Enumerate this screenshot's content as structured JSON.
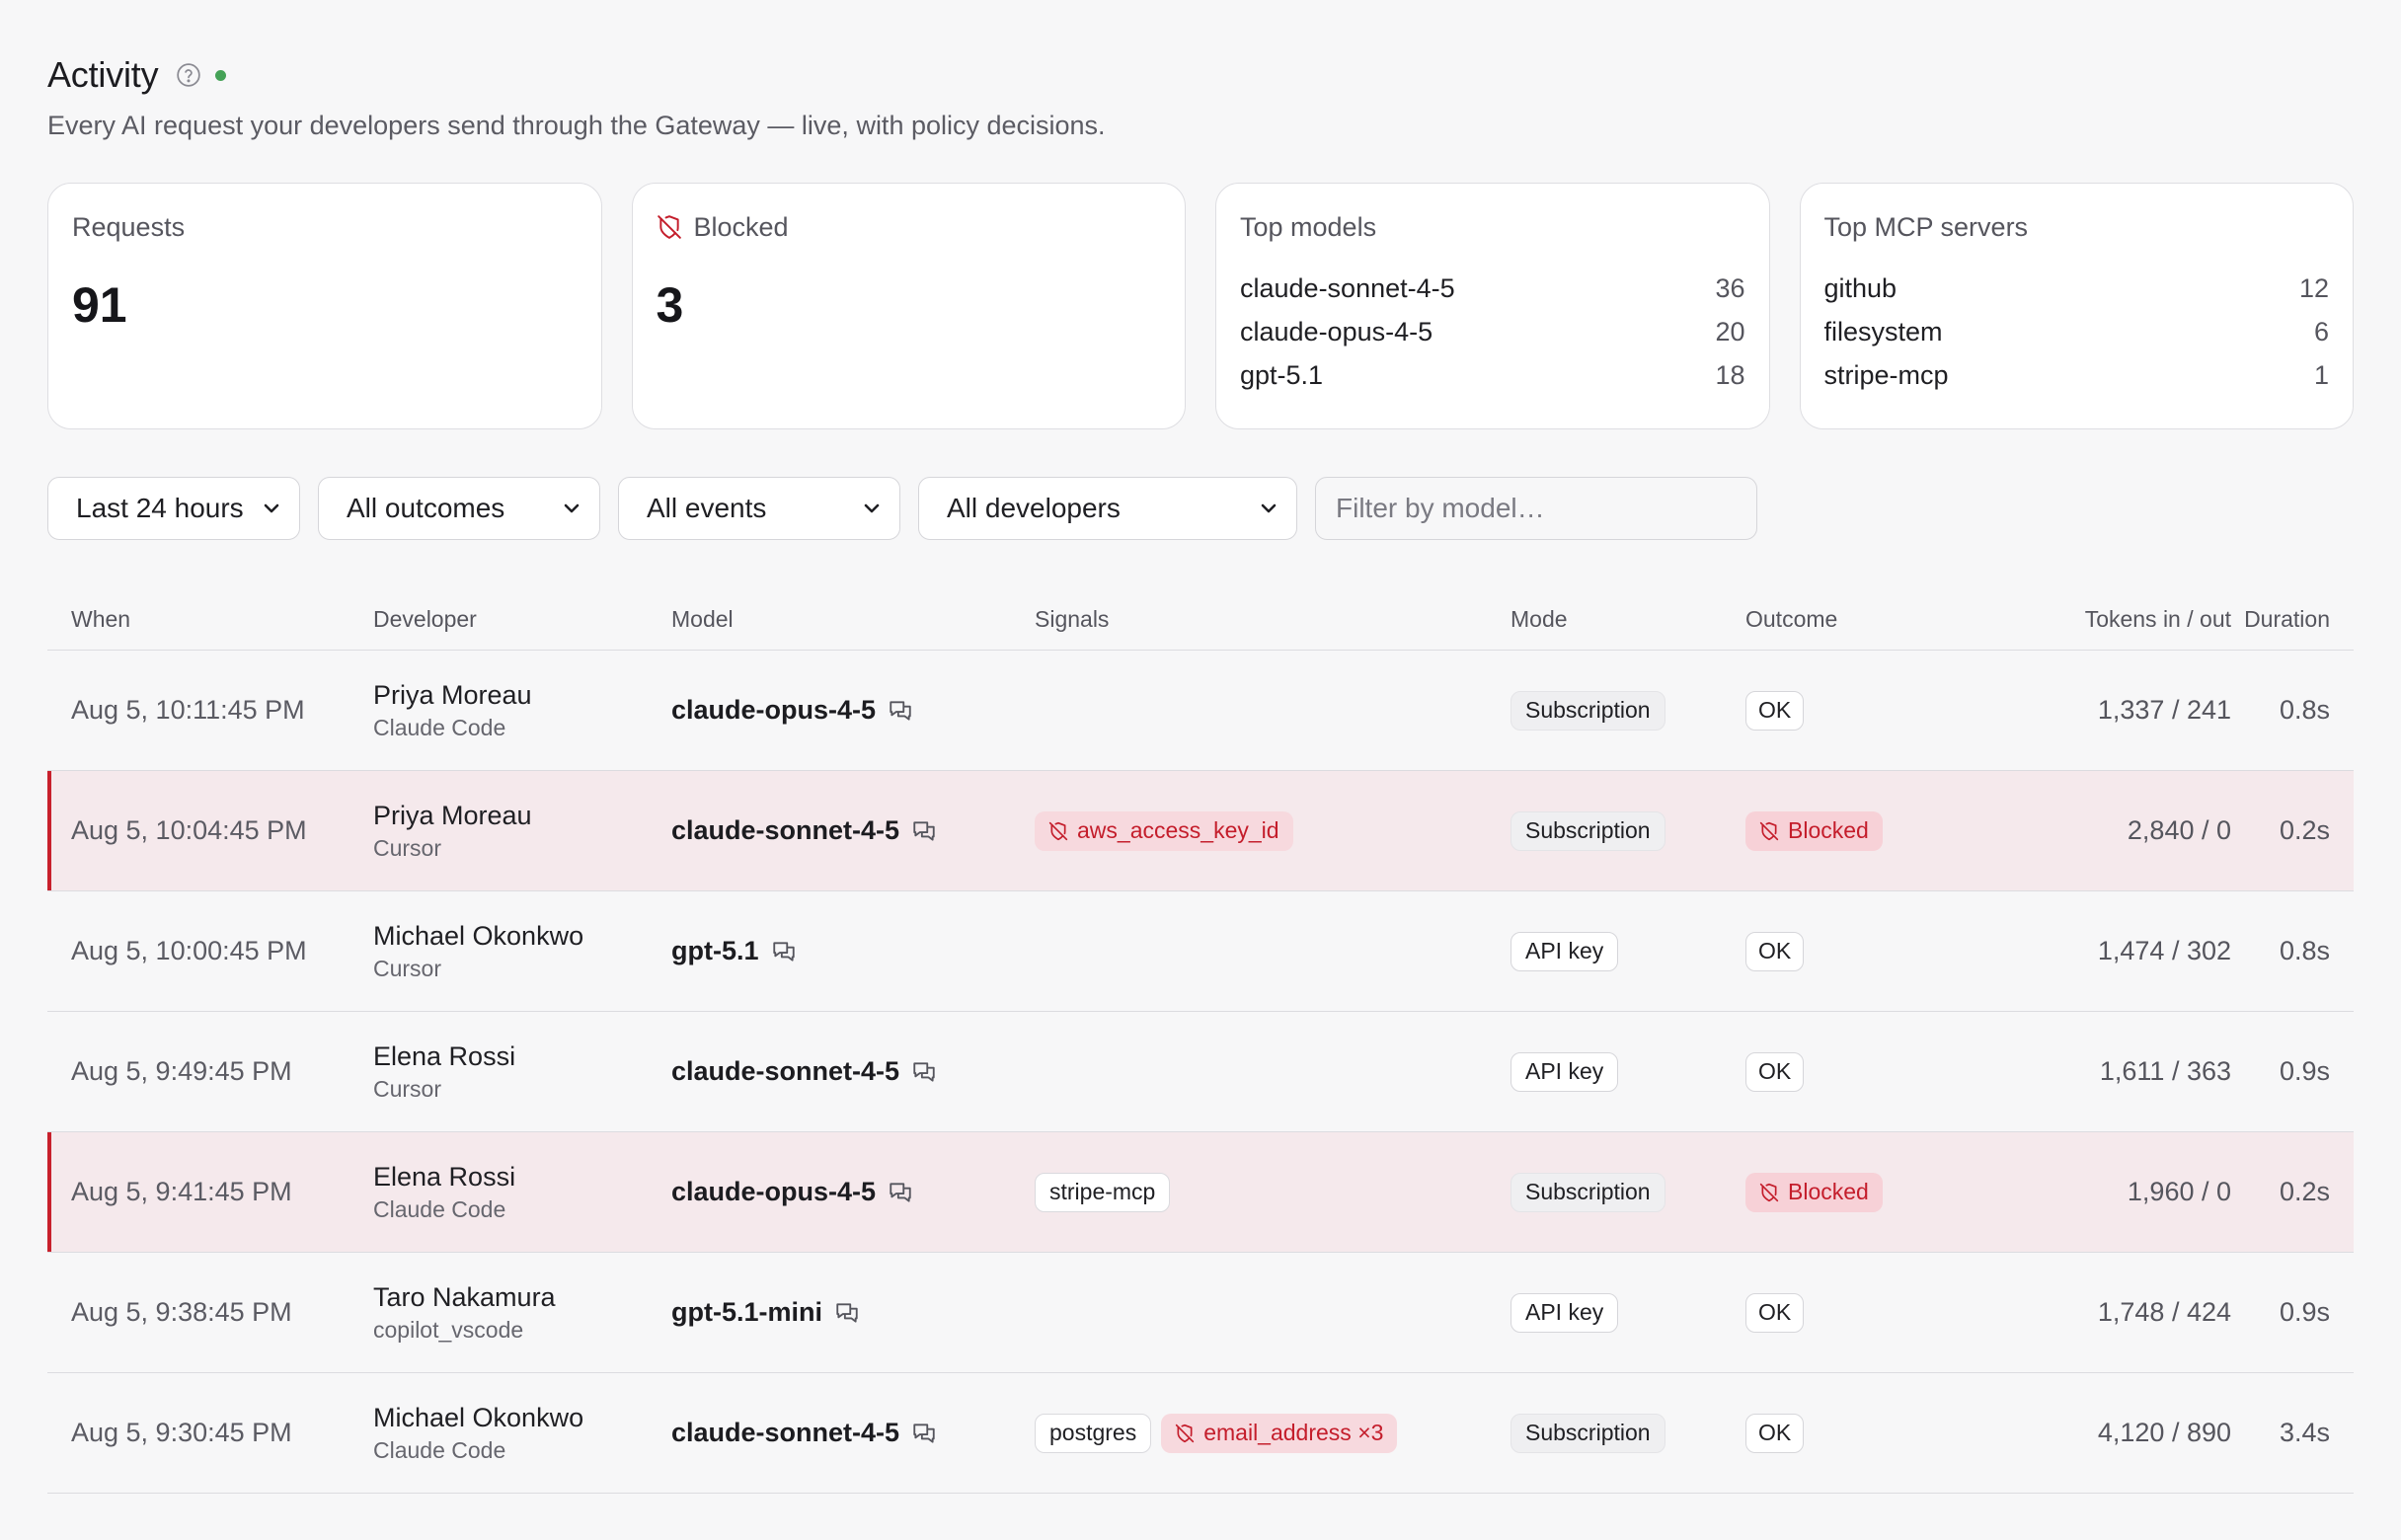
{
  "header": {
    "title": "Activity",
    "subtitle": "Every AI request your developers send through the Gateway — live, with policy decisions."
  },
  "cards": {
    "requests": {
      "label": "Requests",
      "value": "91"
    },
    "blocked": {
      "label": "Blocked",
      "value": "3"
    },
    "top_models": {
      "label": "Top models",
      "items": [
        {
          "name": "claude-sonnet-4-5",
          "count": "36"
        },
        {
          "name": "claude-opus-4-5",
          "count": "20"
        },
        {
          "name": "gpt-5.1",
          "count": "18"
        }
      ]
    },
    "top_mcp": {
      "label": "Top MCP servers",
      "items": [
        {
          "name": "github",
          "count": "12"
        },
        {
          "name": "filesystem",
          "count": "6"
        },
        {
          "name": "stripe-mcp",
          "count": "1"
        }
      ]
    }
  },
  "filters": {
    "time": "Last 24 hours",
    "outcome": "All outcomes",
    "events": "All events",
    "developers": "All developers",
    "model_placeholder": "Filter by model…"
  },
  "table": {
    "columns": {
      "when": "When",
      "developer": "Developer",
      "model": "Model",
      "signals": "Signals",
      "mode": "Mode",
      "outcome": "Outcome",
      "tokens": "Tokens in / out",
      "duration": "Duration"
    },
    "rows": [
      {
        "when": "Aug 5, 10:11:45 PM",
        "dev": "Priya Moreau",
        "client": "Claude Code",
        "model": "claude-opus-4-5",
        "signals": [],
        "mode": "Subscription",
        "outcome": "OK",
        "tokens": "1,337 / 241",
        "duration": "0.8s",
        "blocked": false
      },
      {
        "when": "Aug 5, 10:04:45 PM",
        "dev": "Priya Moreau",
        "client": "Cursor",
        "model": "claude-sonnet-4-5",
        "signals": [
          {
            "text": "aws_access_key_id",
            "kind": "red"
          }
        ],
        "mode": "Subscription",
        "outcome": "Blocked",
        "tokens": "2,840 / 0",
        "duration": "0.2s",
        "blocked": true
      },
      {
        "when": "Aug 5, 10:00:45 PM",
        "dev": "Michael Okonkwo",
        "client": "Cursor",
        "model": "gpt-5.1",
        "signals": [],
        "mode": "API key",
        "outcome": "OK",
        "tokens": "1,474 / 302",
        "duration": "0.8s",
        "blocked": false
      },
      {
        "when": "Aug 5, 9:49:45 PM",
        "dev": "Elena Rossi",
        "client": "Cursor",
        "model": "claude-sonnet-4-5",
        "signals": [],
        "mode": "API key",
        "outcome": "OK",
        "tokens": "1,611 / 363",
        "duration": "0.9s",
        "blocked": false
      },
      {
        "when": "Aug 5, 9:41:45 PM",
        "dev": "Elena Rossi",
        "client": "Claude Code",
        "model": "claude-opus-4-5",
        "signals": [
          {
            "text": "stripe-mcp",
            "kind": "neutral"
          }
        ],
        "mode": "Subscription",
        "outcome": "Blocked",
        "tokens": "1,960 / 0",
        "duration": "0.2s",
        "blocked": true
      },
      {
        "when": "Aug 5, 9:38:45 PM",
        "dev": "Taro Nakamura",
        "client": "copilot_vscode",
        "model": "gpt-5.1-mini",
        "signals": [],
        "mode": "API key",
        "outcome": "OK",
        "tokens": "1,748 / 424",
        "duration": "0.9s",
        "blocked": false
      },
      {
        "when": "Aug 5, 9:30:45 PM",
        "dev": "Michael Okonkwo",
        "client": "Claude Code",
        "model": "claude-sonnet-4-5",
        "signals": [
          {
            "text": "postgres",
            "kind": "neutral"
          },
          {
            "text": "email_address ×3",
            "kind": "red"
          }
        ],
        "mode": "Subscription",
        "outcome": "OK",
        "tokens": "4,120 / 890",
        "duration": "3.4s",
        "blocked": false
      }
    ]
  },
  "colors": {
    "live_dot": "#45a257",
    "blocked_red": "#c41d2b",
    "blocked_row_bg": "#f5e9ec"
  },
  "icons": {
    "help": "question-circle-icon",
    "blocked": "shield-off-icon",
    "chat": "chat-bubbles-icon",
    "chevron": "chevron-down-icon"
  }
}
